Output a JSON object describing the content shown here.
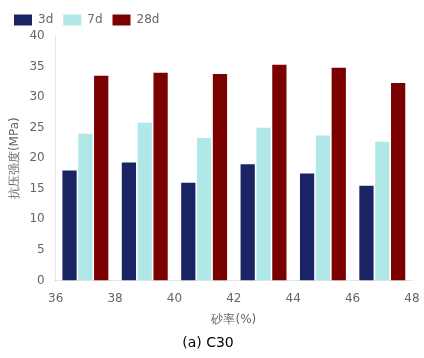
{
  "chart_data": {
    "type": "bar",
    "subtitle": "(a) C30",
    "xlabel": "砂率(%)",
    "ylabel": "抗压强度(MPa)",
    "x": [
      37,
      39,
      41,
      43,
      45,
      47
    ],
    "series": [
      {
        "name": "3d",
        "color": "#1a2464",
        "values": [
          18.0,
          19.3,
          16.0,
          19.0,
          17.5,
          15.5
        ]
      },
      {
        "name": "7d",
        "color": "#b0e8e8",
        "values": [
          24.0,
          25.8,
          23.3,
          25.0,
          23.7,
          22.7
        ]
      },
      {
        "name": "28d",
        "color": "#7b0000",
        "values": [
          33.5,
          34.0,
          33.8,
          35.3,
          34.8,
          32.3
        ]
      }
    ],
    "xlim": [
      36,
      48
    ],
    "xticks": [
      36,
      38,
      40,
      42,
      44,
      46,
      48
    ],
    "ylim": [
      0,
      40
    ],
    "yticks": [
      0,
      5,
      10,
      15,
      20,
      25,
      30,
      35,
      40
    ],
    "grid": false,
    "legend": "upper left"
  }
}
